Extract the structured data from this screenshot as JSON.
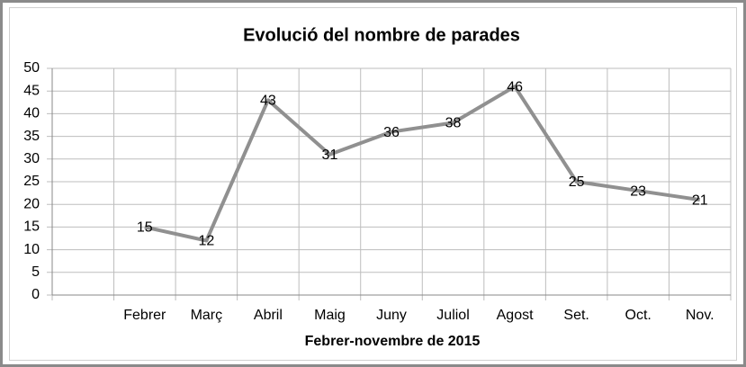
{
  "chart_data": {
    "type": "line",
    "title": "Evolució del nombre de parades",
    "x_label": "Febrer-novembre de 2015",
    "categories": [
      null,
      "Febrer",
      "Març",
      "Abril",
      "Maig",
      "Juny",
      "Juliol",
      "Agost",
      "Set.",
      "Oct.",
      "Nov."
    ],
    "values": [
      null,
      15,
      12,
      43,
      31,
      36,
      38,
      46,
      25,
      23,
      21
    ],
    "color": "#909090",
    "ylim": [
      0,
      50
    ],
    "yticks": [
      0,
      5,
      10,
      15,
      20,
      25,
      30,
      35,
      40,
      45,
      50
    ],
    "grid": true
  }
}
